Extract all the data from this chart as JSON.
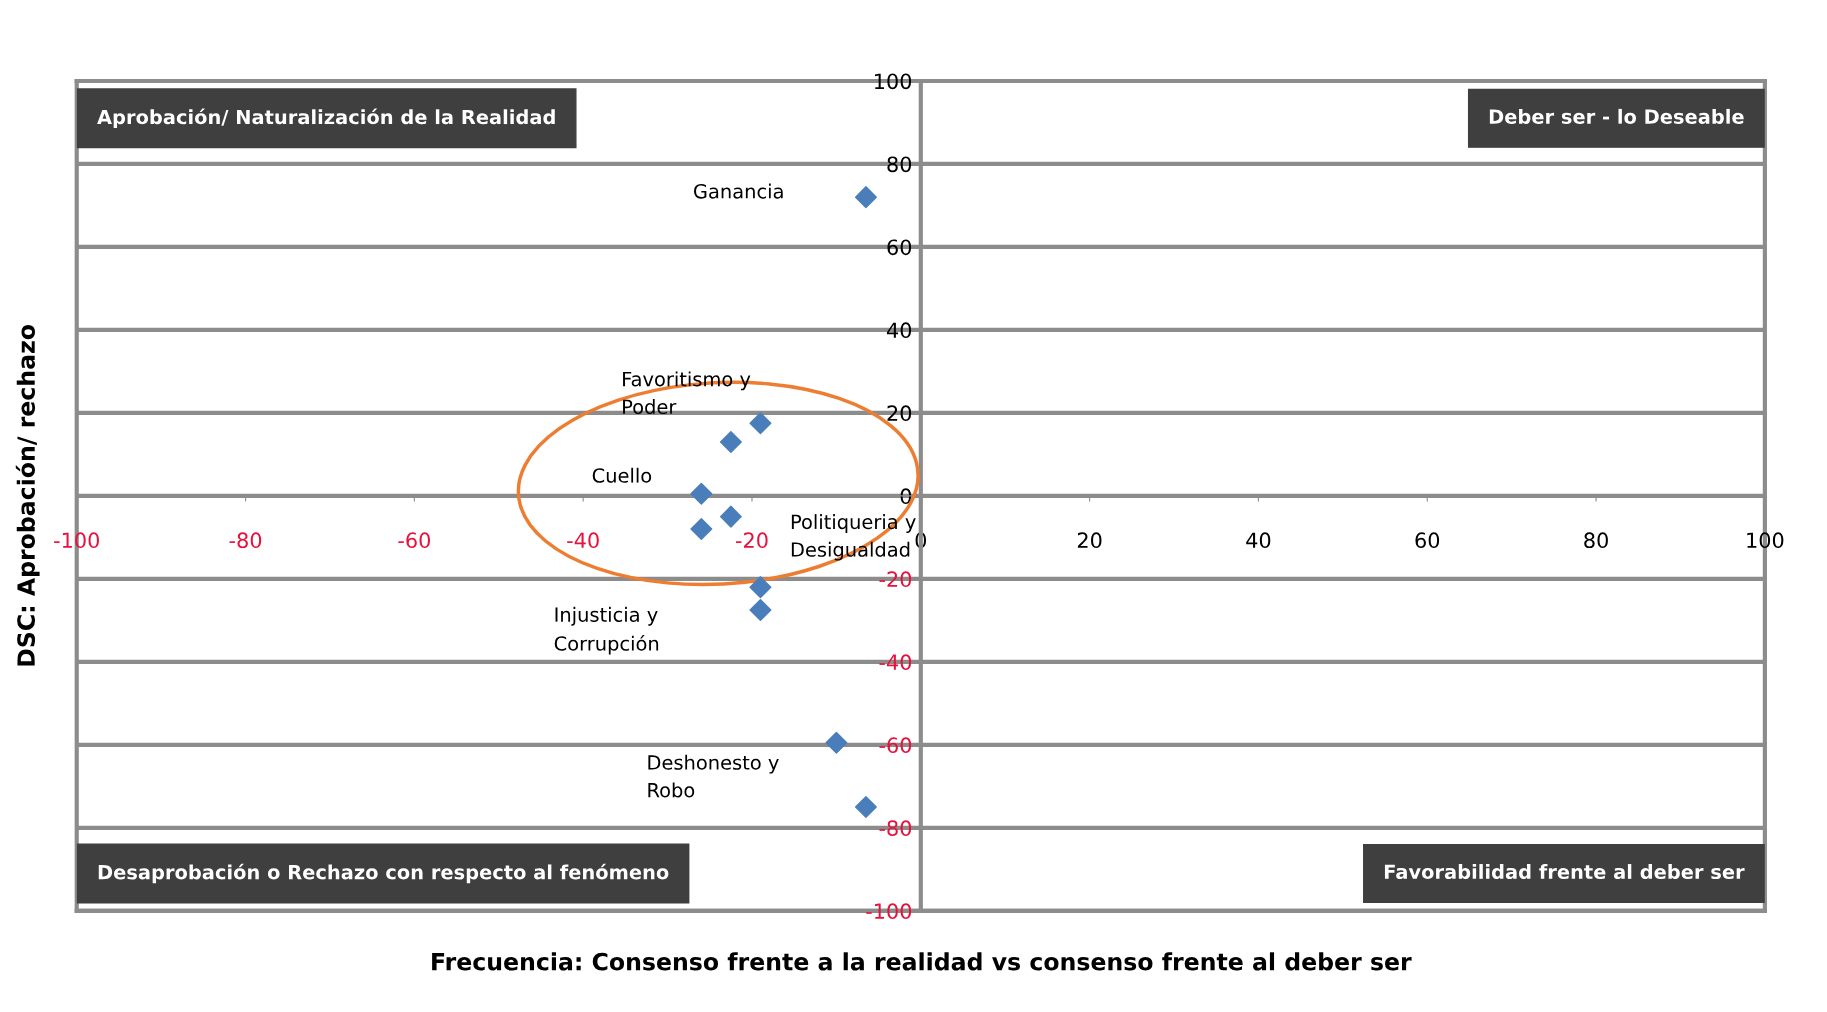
{
  "chart_data": {
    "type": "scatter",
    "xlabel": "Frecuencia: Consenso frente a la realidad vs consenso frente al deber ser",
    "ylabel": "DSC: Aprobación/ rechazo",
    "series": [
      {
        "color": "#4a7ebb",
        "x": [
          -6.5,
          -19,
          -22.5,
          -26,
          -22.5,
          -26,
          -19,
          -19,
          -10,
          -6.5
        ],
        "values": [
          72,
          17.5,
          13,
          0.5,
          -5,
          -8,
          -22,
          -27.5,
          -59.5,
          -75
        ]
      }
    ],
    "marker": "diamond",
    "xlim": [
      -100,
      100
    ],
    "ylim": [
      -100,
      100
    ],
    "xticks": [
      -100,
      -80,
      -60,
      -40,
      -20,
      0,
      20,
      40,
      60,
      80,
      100
    ],
    "yticks": [
      -100,
      -80,
      -60,
      -40,
      -20,
      0,
      20,
      40,
      60,
      80,
      100
    ],
    "grid": "y",
    "annotations": [
      "Aprobación/ Naturalización de la Realidad",
      "Deber ser - lo Deseable",
      "Desaprobación o Rechazo con respecto al fenómeno",
      "Favorabilidad frente al deber ser",
      "Ganancia",
      "Favoritismo y\nPoder",
      "Cuello",
      "Politiqueria y\nDesigualdad",
      "Injusticia y\nCorrupción",
      "Deshonesto y\nRobo"
    ]
  }
}
